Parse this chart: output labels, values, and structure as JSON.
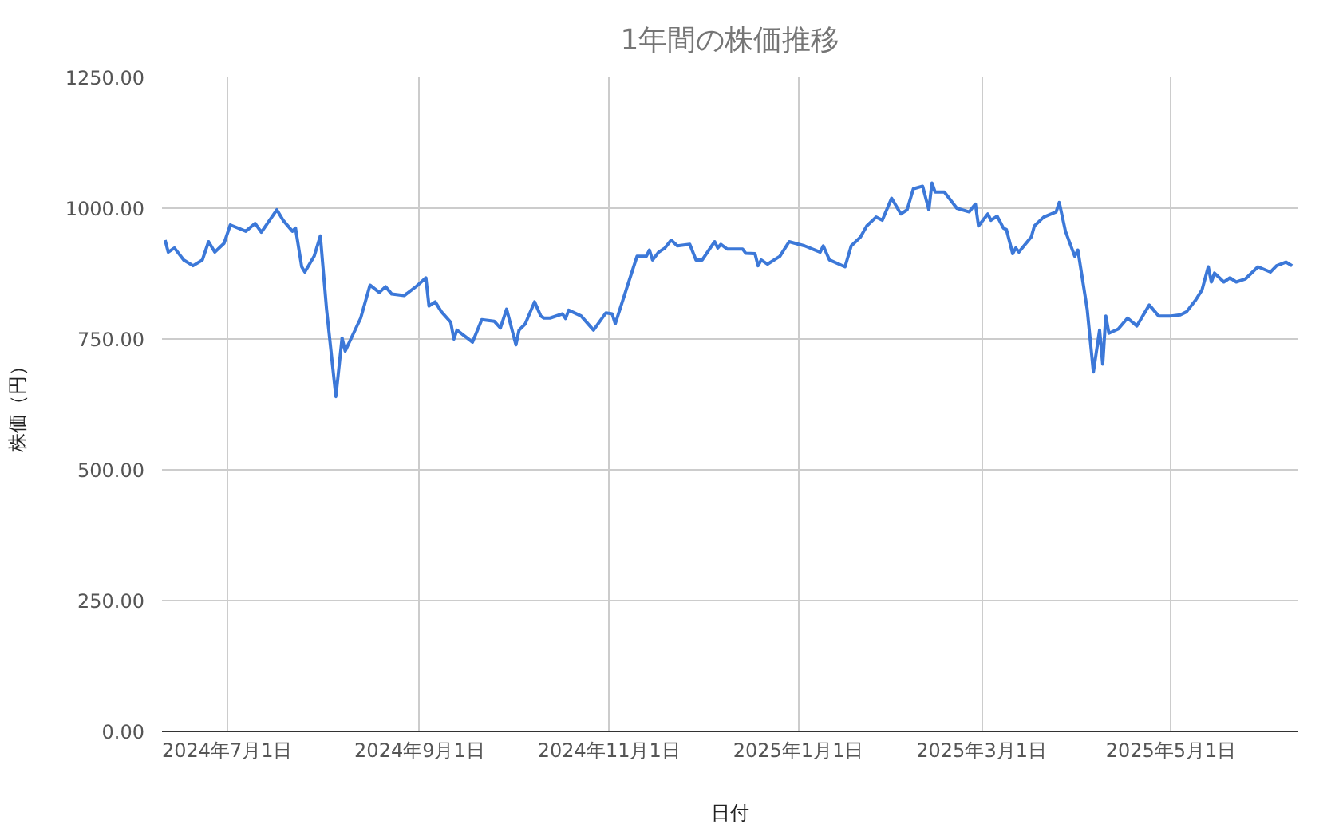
{
  "chart_data": {
    "type": "line",
    "title": "1年間の株価推移",
    "xlabel": "日付",
    "ylabel": "株価（円）",
    "x": [
      "2024-06-11",
      "2024-06-12",
      "2024-06-14",
      "2024-06-17",
      "2024-06-20",
      "2024-06-23",
      "2024-06-25",
      "2024-06-27",
      "2024-06-30",
      "2024-07-02",
      "2024-07-07",
      "2024-07-10",
      "2024-07-12",
      "2024-07-17",
      "2024-07-19",
      "2024-07-22",
      "2024-07-23",
      "2024-07-25",
      "2024-07-26",
      "2024-07-29",
      "2024-07-31",
      "2024-08-02",
      "2024-08-05",
      "2024-08-07",
      "2024-08-08",
      "2024-08-13",
      "2024-08-16",
      "2024-08-19",
      "2024-08-21",
      "2024-08-23",
      "2024-08-27",
      "2024-08-31",
      "2024-09-03",
      "2024-09-04",
      "2024-09-06",
      "2024-09-08",
      "2024-09-11",
      "2024-09-12",
      "2024-09-13",
      "2024-09-18",
      "2024-09-21",
      "2024-09-25",
      "2024-09-27",
      "2024-09-29",
      "2024-10-02",
      "2024-10-03",
      "2024-10-05",
      "2024-10-08",
      "2024-10-10",
      "2024-10-11",
      "2024-10-13",
      "2024-10-17",
      "2024-10-18",
      "2024-10-19",
      "2024-10-23",
      "2024-10-27",
      "2024-10-31",
      "2024-11-02",
      "2024-11-03",
      "2024-11-07",
      "2024-11-10",
      "2024-11-13",
      "2024-11-14",
      "2024-11-15",
      "2024-11-17",
      "2024-11-19",
      "2024-11-21",
      "2024-11-23",
      "2024-11-27",
      "2024-11-29",
      "2024-12-01",
      "2024-12-05",
      "2024-12-06",
      "2024-12-07",
      "2024-12-09",
      "2024-12-14",
      "2024-12-15",
      "2024-12-18",
      "2024-12-19",
      "2024-12-20",
      "2024-12-22",
      "2024-12-26",
      "2024-12-29",
      "2025-01-03",
      "2025-01-08",
      "2025-01-09",
      "2025-01-11",
      "2025-01-16",
      "2025-01-18",
      "2025-01-21",
      "2025-01-23",
      "2025-01-26",
      "2025-01-28",
      "2025-01-31",
      "2025-02-03",
      "2025-02-05",
      "2025-02-07",
      "2025-02-10",
      "2025-02-12",
      "2025-02-13",
      "2025-02-14",
      "2025-02-17",
      "2025-02-21",
      "2025-02-25",
      "2025-02-27",
      "2025-02-28",
      "2025-03-03",
      "2025-03-04",
      "2025-03-06",
      "2025-03-08",
      "2025-03-09",
      "2025-03-11",
      "2025-03-12",
      "2025-03-13",
      "2025-03-17",
      "2025-03-18",
      "2025-03-21",
      "2025-03-25",
      "2025-03-26",
      "2025-03-28",
      "2025-03-31",
      "2025-04-01",
      "2025-04-04",
      "2025-04-06",
      "2025-04-08",
      "2025-04-09",
      "2025-04-10",
      "2025-04-11",
      "2025-04-14",
      "2025-04-17",
      "2025-04-20",
      "2025-04-24",
      "2025-04-27",
      "2025-05-01",
      "2025-05-04",
      "2025-05-06",
      "2025-05-09",
      "2025-05-11",
      "2025-05-13",
      "2025-05-14",
      "2025-05-15",
      "2025-05-18",
      "2025-05-20",
      "2025-05-22",
      "2025-05-25",
      "2025-05-29",
      "2025-06-02",
      "2025-06-04",
      "2025-06-07",
      "2025-06-09"
    ],
    "series": [
      {
        "color": "#3c78d8",
        "values": [
          939,
          916,
          924,
          901,
          890,
          901,
          936,
          916,
          933,
          968,
          956,
          971,
          954,
          997,
          977,
          956,
          962,
          888,
          878,
          908,
          947,
          807,
          640,
          752,
          727,
          790,
          853,
          839,
          850,
          836,
          833,
          851,
          867,
          813,
          821,
          802,
          782,
          750,
          767,
          744,
          787,
          784,
          771,
          807,
          739,
          767,
          779,
          821,
          794,
          790,
          790,
          798,
          789,
          805,
          794,
          767,
          800,
          798,
          779,
          853,
          908,
          908,
          920,
          901,
          916,
          924,
          939,
          928,
          931,
          901,
          901,
          936,
          924,
          931,
          922,
          922,
          914,
          913,
          890,
          901,
          893,
          908,
          936,
          928,
          916,
          928,
          901,
          888,
          928,
          945,
          966,
          983,
          977,
          1019,
          989,
          997,
          1037,
          1042,
          997,
          1048,
          1031,
          1031,
          1000,
          993,
          1008,
          966,
          989,
          977,
          985,
          962,
          959,
          913,
          924,
          916,
          945,
          966,
          983,
          993,
          1011,
          956,
          908,
          920,
          807,
          687,
          767,
          702,
          794,
          761,
          769,
          790,
          775,
          815,
          794,
          794,
          796,
          802,
          825,
          844,
          888,
          859,
          876,
          859,
          867,
          859,
          865,
          888,
          878,
          890,
          897,
          890
        ]
      }
    ],
    "xlim": [
      "2024-06-10",
      "2025-06-11"
    ],
    "xticks": [
      {
        "value": "2024-07-01",
        "label": "2024年7月1日"
      },
      {
        "value": "2024-09-01",
        "label": "2024年9月1日"
      },
      {
        "value": "2024-11-01",
        "label": "2024年11月1日"
      },
      {
        "value": "2025-01-01",
        "label": "2025年1月1日"
      },
      {
        "value": "2025-03-01",
        "label": "2025年3月1日"
      },
      {
        "value": "2025-05-01",
        "label": "2025年5月1日"
      }
    ],
    "ylim": [
      0,
      1250
    ],
    "yticks": [
      {
        "value": 0,
        "label": "0.00"
      },
      {
        "value": 250,
        "label": "250.00"
      },
      {
        "value": 500,
        "label": "500.00"
      },
      {
        "value": 750,
        "label": "750.00"
      },
      {
        "value": 1000,
        "label": "1000.00"
      },
      {
        "value": 1250,
        "label": "1250.00"
      }
    ],
    "grid": true,
    "line_style": "solid",
    "marker": "none"
  }
}
